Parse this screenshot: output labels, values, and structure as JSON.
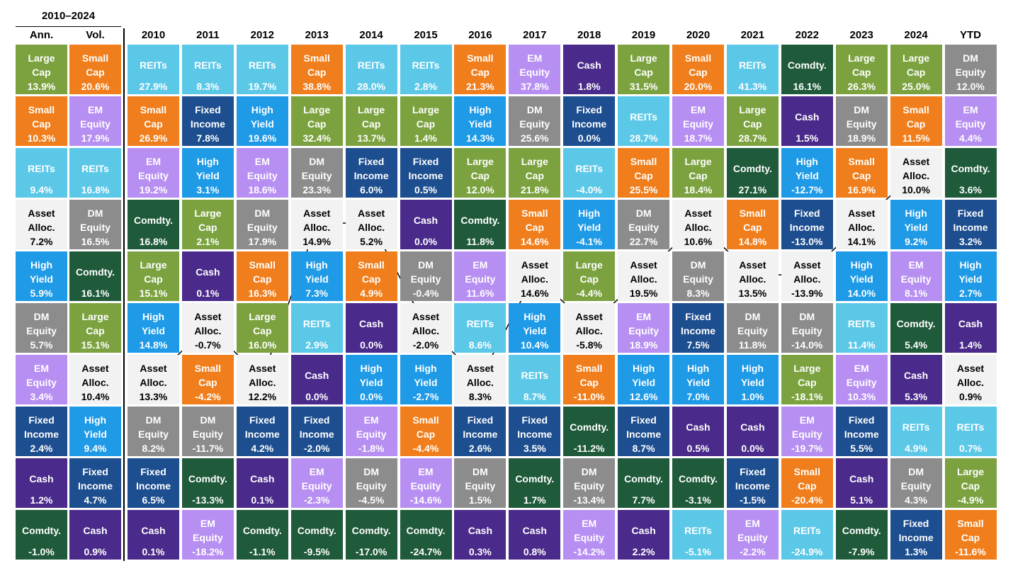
{
  "header": {
    "period": "2010–2024"
  },
  "colors": {
    "Large Cap": "#7ba23f",
    "Small Cap": "#f07e1c",
    "REITs": "#5cc8e8",
    "EM Equity": "#b78ff2",
    "DM Equity": "#8c8c8c",
    "Fixed Income": "#1d4e8f",
    "High Yield": "#1e9ae6",
    "Cash": "#4a2a8a",
    "Comdty.": "#1f5a3a",
    "Asset Alloc.": "#f2f2f2"
  },
  "columns": [
    {
      "heading": "Ann.",
      "cells": [
        {
          "label": "Large Cap",
          "value": "13.9%"
        },
        {
          "label": "Small Cap",
          "value": "10.3%"
        },
        {
          "label": "REITs",
          "value": "9.4%"
        },
        {
          "label": "Asset Alloc.",
          "value": "7.2%"
        },
        {
          "label": "High Yield",
          "value": "5.9%"
        },
        {
          "label": "DM Equity",
          "value": "5.7%"
        },
        {
          "label": "EM Equity",
          "value": "3.4%"
        },
        {
          "label": "Fixed Income",
          "value": "2.4%"
        },
        {
          "label": "Cash",
          "value": "1.2%"
        },
        {
          "label": "Comdty.",
          "value": "-1.0%"
        }
      ]
    },
    {
      "heading": "Vol.",
      "cells": [
        {
          "label": "Small Cap",
          "value": "20.6%"
        },
        {
          "label": "EM Equity",
          "value": "17.9%"
        },
        {
          "label": "REITs",
          "value": "16.8%"
        },
        {
          "label": "DM Equity",
          "value": "16.5%"
        },
        {
          "label": "Comdty.",
          "value": "16.1%"
        },
        {
          "label": "Large Cap",
          "value": "15.1%"
        },
        {
          "label": "Asset Alloc.",
          "value": "10.4%"
        },
        {
          "label": "High Yield",
          "value": "9.4%"
        },
        {
          "label": "Fixed Income",
          "value": "4.7%"
        },
        {
          "label": "Cash",
          "value": "0.9%"
        }
      ]
    },
    {
      "heading": "2010",
      "cells": [
        {
          "label": "REITs",
          "value": "27.9%"
        },
        {
          "label": "Small Cap",
          "value": "26.9%"
        },
        {
          "label": "EM Equity",
          "value": "19.2%"
        },
        {
          "label": "Comdty.",
          "value": "16.8%"
        },
        {
          "label": "Large Cap",
          "value": "15.1%"
        },
        {
          "label": "High Yield",
          "value": "14.8%"
        },
        {
          "label": "Asset Alloc.",
          "value": "13.3%",
          "dot": true
        },
        {
          "label": "DM Equity",
          "value": "8.2%"
        },
        {
          "label": "Fixed Income",
          "value": "6.5%"
        },
        {
          "label": "Cash",
          "value": "0.1%"
        }
      ]
    },
    {
      "heading": "2011",
      "cells": [
        {
          "label": "REITs",
          "value": "8.3%"
        },
        {
          "label": "Fixed Income",
          "value": "7.8%"
        },
        {
          "label": "High Yield",
          "value": "3.1%"
        },
        {
          "label": "Large Cap",
          "value": "2.1%"
        },
        {
          "label": "Cash",
          "value": "0.1%"
        },
        {
          "label": "Asset Alloc.",
          "value": "-0.7%",
          "dot": true
        },
        {
          "label": "Small Cap",
          "value": "-4.2%"
        },
        {
          "label": "DM Equity",
          "value": "-11.7%"
        },
        {
          "label": "Comdty.",
          "value": "-13.3%"
        },
        {
          "label": "EM Equity",
          "value": "-18.2%"
        }
      ]
    },
    {
      "heading": "2012",
      "cells": [
        {
          "label": "REITs",
          "value": "19.7%"
        },
        {
          "label": "High Yield",
          "value": "19.6%"
        },
        {
          "label": "EM Equity",
          "value": "18.6%"
        },
        {
          "label": "DM Equity",
          "value": "17.9%"
        },
        {
          "label": "Small Cap",
          "value": "16.3%"
        },
        {
          "label": "Large Cap",
          "value": "16.0%"
        },
        {
          "label": "Asset Alloc.",
          "value": "12.2%",
          "dot": true
        },
        {
          "label": "Fixed Income",
          "value": "4.2%"
        },
        {
          "label": "Cash",
          "value": "0.1%"
        },
        {
          "label": "Comdty.",
          "value": "-1.1%"
        }
      ]
    },
    {
      "heading": "2013",
      "cells": [
        {
          "label": "Small Cap",
          "value": "38.8%"
        },
        {
          "label": "Large Cap",
          "value": "32.4%"
        },
        {
          "label": "DM Equity",
          "value": "23.3%"
        },
        {
          "label": "Asset Alloc.",
          "value": "14.9%",
          "dot": true
        },
        {
          "label": "High Yield",
          "value": "7.3%"
        },
        {
          "label": "REITs",
          "value": "2.9%"
        },
        {
          "label": "Cash",
          "value": "0.0%"
        },
        {
          "label": "Fixed Income",
          "value": "-2.0%"
        },
        {
          "label": "EM Equity",
          "value": "-2.3%"
        },
        {
          "label": "Comdty.",
          "value": "-9.5%"
        }
      ]
    },
    {
      "heading": "2014",
      "cells": [
        {
          "label": "REITs",
          "value": "28.0%"
        },
        {
          "label": "Large Cap",
          "value": "13.7%"
        },
        {
          "label": "Fixed Income",
          "value": "6.0%"
        },
        {
          "label": "Asset Alloc.",
          "value": "5.2%",
          "dot": true
        },
        {
          "label": "Small Cap",
          "value": "4.9%"
        },
        {
          "label": "Cash",
          "value": "0.0%"
        },
        {
          "label": "High Yield",
          "value": "0.0%"
        },
        {
          "label": "EM Equity",
          "value": "-1.8%"
        },
        {
          "label": "DM Equity",
          "value": "-4.5%"
        },
        {
          "label": "Comdty.",
          "value": "-17.0%"
        }
      ]
    },
    {
      "heading": "2015",
      "cells": [
        {
          "label": "REITs",
          "value": "2.8%"
        },
        {
          "label": "Large Cap",
          "value": "1.4%"
        },
        {
          "label": "Fixed Income",
          "value": "0.5%"
        },
        {
          "label": "Cash",
          "value": "0.0%"
        },
        {
          "label": "DM Equity",
          "value": "-0.4%"
        },
        {
          "label": "Asset Alloc.",
          "value": "-2.0%",
          "dot": true
        },
        {
          "label": "High Yield",
          "value": "-2.7%"
        },
        {
          "label": "Small Cap",
          "value": "-4.4%"
        },
        {
          "label": "EM Equity",
          "value": "-14.6%"
        },
        {
          "label": "Comdty.",
          "value": "-24.7%"
        }
      ]
    },
    {
      "heading": "2016",
      "cells": [
        {
          "label": "Small Cap",
          "value": "21.3%"
        },
        {
          "label": "High Yield",
          "value": "14.3%"
        },
        {
          "label": "Large Cap",
          "value": "12.0%"
        },
        {
          "label": "Comdty.",
          "value": "11.8%"
        },
        {
          "label": "EM Equity",
          "value": "11.6%"
        },
        {
          "label": "REITs",
          "value": "8.6%"
        },
        {
          "label": "Asset Alloc.",
          "value": "8.3%",
          "dot": true
        },
        {
          "label": "Fixed Income",
          "value": "2.6%"
        },
        {
          "label": "DM Equity",
          "value": "1.5%"
        },
        {
          "label": "Cash",
          "value": "0.3%"
        }
      ]
    },
    {
      "heading": "2017",
      "cells": [
        {
          "label": "EM Equity",
          "value": "37.8%"
        },
        {
          "label": "DM Equity",
          "value": "25.6%"
        },
        {
          "label": "Large Cap",
          "value": "21.8%"
        },
        {
          "label": "Small Cap",
          "value": "14.6%"
        },
        {
          "label": "Asset Alloc.",
          "value": "14.6%",
          "dot": true
        },
        {
          "label": "High Yield",
          "value": "10.4%"
        },
        {
          "label": "REITs",
          "value": "8.7%"
        },
        {
          "label": "Fixed Income",
          "value": "3.5%"
        },
        {
          "label": "Comdty.",
          "value": "1.7%"
        },
        {
          "label": "Cash",
          "value": "0.8%"
        }
      ]
    },
    {
      "heading": "2018",
      "cells": [
        {
          "label": "Cash",
          "value": "1.8%"
        },
        {
          "label": "Fixed Income",
          "value": "0.0%"
        },
        {
          "label": "REITs",
          "value": "-4.0%"
        },
        {
          "label": "High Yield",
          "value": "-4.1%"
        },
        {
          "label": "Large Cap",
          "value": "-4.4%"
        },
        {
          "label": "Asset Alloc.",
          "value": "-5.8%",
          "dot": true
        },
        {
          "label": "Small Cap",
          "value": "-11.0%"
        },
        {
          "label": "Comdty.",
          "value": "-11.2%"
        },
        {
          "label": "DM Equity",
          "value": "-13.4%"
        },
        {
          "label": "EM Equity",
          "value": "-14.2%"
        }
      ]
    },
    {
      "heading": "2019",
      "cells": [
        {
          "label": "Large Cap",
          "value": "31.5%"
        },
        {
          "label": "REITs",
          "value": "28.7%"
        },
        {
          "label": "Small Cap",
          "value": "25.5%"
        },
        {
          "label": "DM Equity",
          "value": "22.7%"
        },
        {
          "label": "Asset Alloc.",
          "value": "19.5%",
          "dot": true
        },
        {
          "label": "EM Equity",
          "value": "18.9%"
        },
        {
          "label": "High Yield",
          "value": "12.6%"
        },
        {
          "label": "Fixed Income",
          "value": "8.7%"
        },
        {
          "label": "Comdty.",
          "value": "7.7%"
        },
        {
          "label": "Cash",
          "value": "2.2%"
        }
      ]
    },
    {
      "heading": "2020",
      "cells": [
        {
          "label": "Small Cap",
          "value": "20.0%"
        },
        {
          "label": "EM Equity",
          "value": "18.7%"
        },
        {
          "label": "Large Cap",
          "value": "18.4%"
        },
        {
          "label": "Asset Alloc.",
          "value": "10.6%",
          "dot": true
        },
        {
          "label": "DM Equity",
          "value": "8.3%"
        },
        {
          "label": "Fixed Income",
          "value": "7.5%"
        },
        {
          "label": "High Yield",
          "value": "7.0%"
        },
        {
          "label": "Cash",
          "value": "0.5%"
        },
        {
          "label": "Comdty.",
          "value": "-3.1%"
        },
        {
          "label": "REITs",
          "value": "-5.1%"
        }
      ]
    },
    {
      "heading": "2021",
      "cells": [
        {
          "label": "REITs",
          "value": "41.3%"
        },
        {
          "label": "Large Cap",
          "value": "28.7%"
        },
        {
          "label": "Comdty.",
          "value": "27.1%"
        },
        {
          "label": "Small Cap",
          "value": "14.8%"
        },
        {
          "label": "Asset Alloc.",
          "value": "13.5%",
          "dot": true
        },
        {
          "label": "DM Equity",
          "value": "11.8%"
        },
        {
          "label": "High Yield",
          "value": "1.0%"
        },
        {
          "label": "Cash",
          "value": "0.0%"
        },
        {
          "label": "Fixed Income",
          "value": "-1.5%"
        },
        {
          "label": "EM Equity",
          "value": "-2.2%"
        }
      ]
    },
    {
      "heading": "2022",
      "cells": [
        {
          "label": "Comdty.",
          "value": "16.1%"
        },
        {
          "label": "Cash",
          "value": "1.5%"
        },
        {
          "label": "High Yield",
          "value": "-12.7%"
        },
        {
          "label": "Fixed Income",
          "value": "-13.0%"
        },
        {
          "label": "Asset Alloc.",
          "value": "-13.9%",
          "dot": true
        },
        {
          "label": "DM Equity",
          "value": "-14.0%"
        },
        {
          "label": "Large Cap",
          "value": "-18.1%"
        },
        {
          "label": "EM Equity",
          "value": "-19.7%"
        },
        {
          "label": "Small Cap",
          "value": "-20.4%"
        },
        {
          "label": "REITs",
          "value": "-24.9%"
        }
      ]
    },
    {
      "heading": "2023",
      "cells": [
        {
          "label": "Large Cap",
          "value": "26.3%"
        },
        {
          "label": "DM Equity",
          "value": "18.9%"
        },
        {
          "label": "Small Cap",
          "value": "16.9%"
        },
        {
          "label": "Asset Alloc.",
          "value": "14.1%",
          "dot": true
        },
        {
          "label": "High Yield",
          "value": "14.0%"
        },
        {
          "label": "REITs",
          "value": "11.4%"
        },
        {
          "label": "EM Equity",
          "value": "10.3%"
        },
        {
          "label": "Fixed Income",
          "value": "5.5%"
        },
        {
          "label": "Cash",
          "value": "5.1%"
        },
        {
          "label": "Comdty.",
          "value": "-7.9%"
        }
      ]
    },
    {
      "heading": "2024",
      "cells": [
        {
          "label": "Large Cap",
          "value": "25.0%"
        },
        {
          "label": "Small Cap",
          "value": "11.5%"
        },
        {
          "label": "Asset Alloc.",
          "value": "10.0%",
          "dot": true
        },
        {
          "label": "High Yield",
          "value": "9.2%"
        },
        {
          "label": "EM Equity",
          "value": "8.1%"
        },
        {
          "label": "Comdty.",
          "value": "5.4%"
        },
        {
          "label": "Cash",
          "value": "5.3%"
        },
        {
          "label": "REITs",
          "value": "4.9%"
        },
        {
          "label": "DM Equity",
          "value": "4.3%"
        },
        {
          "label": "Fixed Income",
          "value": "1.3%"
        }
      ]
    },
    {
      "heading": "YTD",
      "cells": [
        {
          "label": "DM Equity",
          "value": "12.0%"
        },
        {
          "label": "EM Equity",
          "value": "4.4%"
        },
        {
          "label": "Comdty.",
          "value": "3.6%"
        },
        {
          "label": "Fixed Income",
          "value": "3.2%"
        },
        {
          "label": "High Yield",
          "value": "2.7%"
        },
        {
          "label": "Cash",
          "value": "1.4%"
        },
        {
          "label": "Asset Alloc.",
          "value": "0.9%"
        },
        {
          "label": "REITs",
          "value": "0.7%"
        },
        {
          "label": "Large Cap",
          "value": "-4.9%"
        },
        {
          "label": "Small Cap",
          "value": "-11.6%"
        }
      ]
    }
  ]
}
